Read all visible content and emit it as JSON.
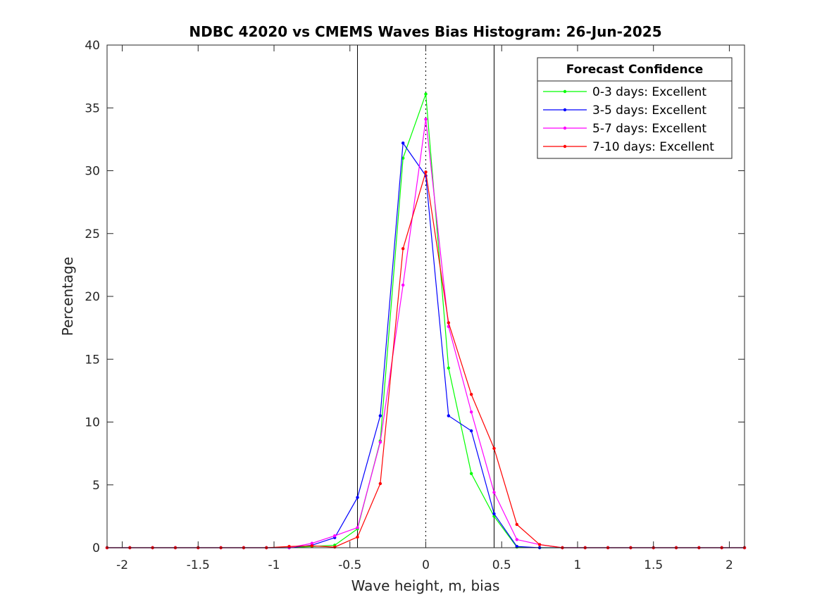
{
  "chart_data": {
    "type": "line",
    "title": "NDBC 42020 vs CMEMS Waves Bias Histogram: 26-Jun-2025",
    "xlabel": "Wave height, m, bias",
    "ylabel": "Percentage",
    "xlim": [
      -2.1,
      2.1
    ],
    "ylim": [
      0,
      40
    ],
    "xticks": [
      -2,
      -1.5,
      -1,
      -0.5,
      0,
      0.5,
      1,
      1.5,
      2
    ],
    "xtick_labels": [
      "-2",
      "-1.5",
      "-1",
      "-0.5",
      "0",
      "0.5",
      "1",
      "1.5",
      "2"
    ],
    "yticks": [
      0,
      5,
      10,
      15,
      20,
      25,
      30,
      35,
      40
    ],
    "ytick_labels": [
      "0",
      "5",
      "10",
      "15",
      "20",
      "25",
      "30",
      "35",
      "40"
    ],
    "vlines_solid": [
      -0.45,
      0.45
    ],
    "vline_dotted": 0,
    "x": [
      -2.1,
      -1.95,
      -1.8,
      -1.65,
      -1.5,
      -1.35,
      -1.2,
      -1.05,
      -0.9,
      -0.75,
      -0.6,
      -0.45,
      -0.3,
      -0.15,
      0,
      0.15,
      0.3,
      0.45,
      0.6,
      0.75,
      0.9,
      1.05,
      1.2,
      1.35,
      1.5,
      1.65,
      1.8,
      1.95,
      2.1
    ],
    "series": [
      {
        "name": "0-3 days: Excellent",
        "color": "#00ff00",
        "values": [
          0,
          0,
          0,
          0,
          0,
          0,
          0,
          0,
          0,
          0.1,
          0.2,
          1.5,
          8.5,
          31,
          36.1,
          14.3,
          5.9,
          2.5,
          0.05,
          0,
          0,
          0,
          0,
          0,
          0,
          0,
          0,
          0,
          0
        ]
      },
      {
        "name": "3-5 days: Excellent",
        "color": "#0000ff",
        "values": [
          0,
          0,
          0,
          0,
          0,
          0,
          0,
          0,
          0,
          0.2,
          0.8,
          4.0,
          10.5,
          32.2,
          29.6,
          10.5,
          9.3,
          2.7,
          0.1,
          0,
          0,
          0,
          0,
          0,
          0,
          0,
          0,
          0,
          0
        ]
      },
      {
        "name": "5-7 days: Excellent",
        "color": "#ff00ff",
        "values": [
          0,
          0,
          0,
          0,
          0,
          0,
          0,
          0,
          0,
          0.35,
          0.95,
          1.6,
          8.4,
          20.9,
          34.1,
          17.6,
          10.8,
          4.4,
          0.65,
          0.25,
          0,
          0,
          0,
          0,
          0,
          0,
          0,
          0,
          0
        ]
      },
      {
        "name": "7-10 days: Excellent",
        "color": "#ff0000",
        "values": [
          0,
          0,
          0,
          0,
          0,
          0,
          0,
          0,
          0.1,
          0.15,
          0.05,
          0.85,
          5.1,
          23.8,
          29.9,
          17.9,
          12.2,
          7.9,
          1.85,
          0.25,
          0,
          0,
          0,
          0,
          0,
          0,
          0,
          0,
          0
        ]
      }
    ],
    "legend": {
      "title": "Forecast Confidence",
      "placement": "top-right"
    },
    "grid": false
  }
}
